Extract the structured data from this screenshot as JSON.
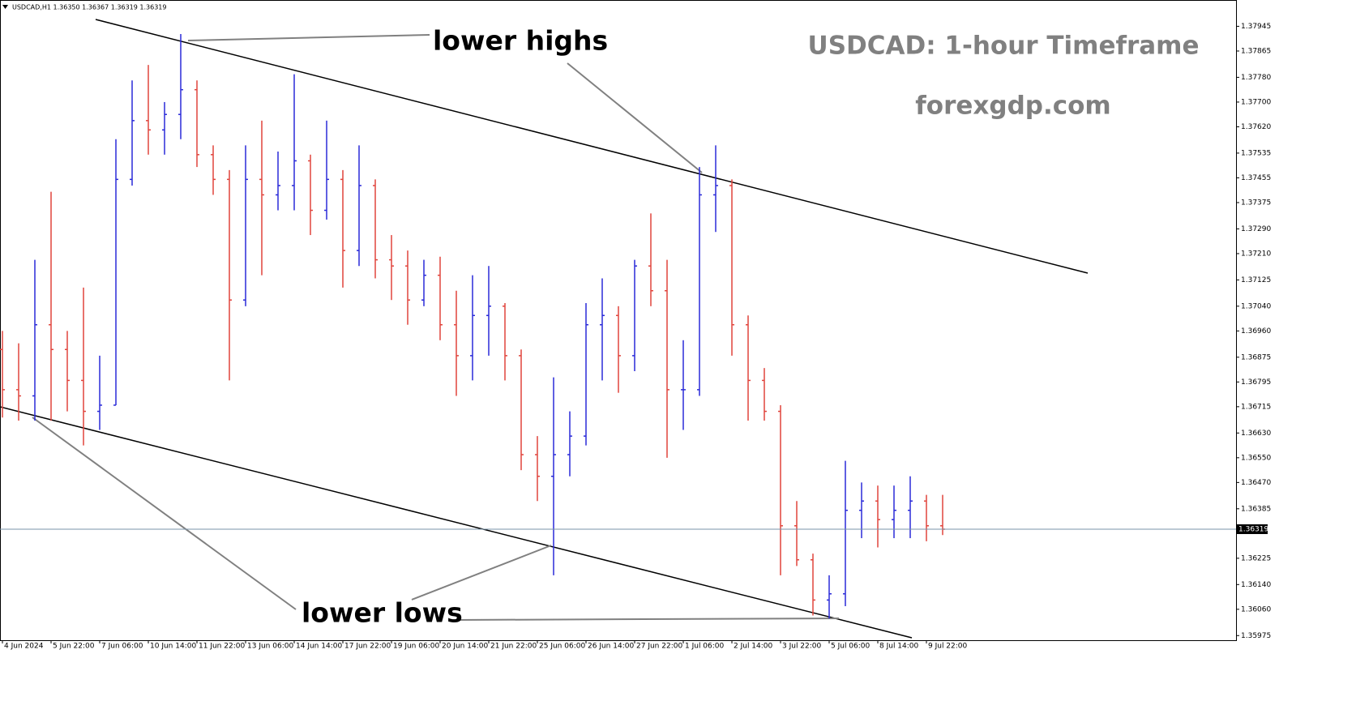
{
  "chart_data": {
    "type": "ohlc",
    "header": "USDCAD,H1  1.36350 1.36367 1.36319 1.36319",
    "title": "USDCAD: 1-hour Timeframe",
    "subtitle": "forexgdp.com",
    "annotations": [
      "lower highs",
      "lower lows"
    ],
    "up_color": "#2a2ad8",
    "down_color": "#e0443c",
    "grid": false,
    "last_price": 1.36319,
    "last_price_label": "1.36319",
    "xlim": [
      -0.15,
      76.1
    ],
    "ylim": [
      1.3596,
      1.3803
    ],
    "xticks": [
      {
        "value": 0,
        "label": "4 Jun 2024"
      },
      {
        "value": 3,
        "label": "5 Jun 22:00"
      },
      {
        "value": 6,
        "label": "7 Jun 06:00"
      },
      {
        "value": 9,
        "label": "10 Jun 14:00"
      },
      {
        "value": 12,
        "label": "11 Jun 22:00"
      },
      {
        "value": 15,
        "label": "13 Jun 06:00"
      },
      {
        "value": 18,
        "label": "14 Jun 14:00"
      },
      {
        "value": 21,
        "label": "17 Jun 22:00"
      },
      {
        "value": 24,
        "label": "19 Jun 06:00"
      },
      {
        "value": 27,
        "label": "20 Jun 14:00"
      },
      {
        "value": 30,
        "label": "21 Jun 22:00"
      },
      {
        "value": 33,
        "label": "25 Jun 06:00"
      },
      {
        "value": 36,
        "label": "26 Jun 14:00"
      },
      {
        "value": 39,
        "label": "27 Jun 22:00"
      },
      {
        "value": 42,
        "label": "1 Jul 06:00"
      },
      {
        "value": 45,
        "label": "2 Jul 14:00"
      },
      {
        "value": 48,
        "label": "3 Jul 22:00"
      },
      {
        "value": 51,
        "label": "5 Jul 06:00"
      },
      {
        "value": 54,
        "label": "8 Jul 14:00"
      },
      {
        "value": 57,
        "label": "9 Jul 22:00"
      }
    ],
    "yticks": [
      1.37945,
      1.37865,
      {
        "value": 1.3778,
        "label": "1.37780"
      },
      {
        "value": 1.377,
        "label": "1.37700"
      },
      {
        "value": 1.3762,
        "label": "1.37620"
      },
      1.37535,
      1.37455,
      1.37375,
      {
        "value": 1.3729,
        "label": "1.37290"
      },
      {
        "value": 1.3721,
        "label": "1.37210"
      },
      1.37125,
      {
        "value": 1.3704,
        "label": "1.37040"
      },
      {
        "value": 1.3696,
        "label": "1.36960"
      },
      1.36875,
      1.36795,
      1.36715,
      {
        "value": 1.3663,
        "label": "1.36630"
      },
      {
        "value": 1.3655,
        "label": "1.36550"
      },
      {
        "value": 1.3647,
        "label": "1.36470"
      },
      1.36385,
      1.36225,
      {
        "value": 1.3614,
        "label": "1.36140"
      },
      {
        "value": 1.3606,
        "label": "1.36060"
      },
      1.35975
    ],
    "open": [
      1.369,
      1.3677,
      1.3675,
      1.3698,
      1.369,
      1.368,
      1.367,
      1.3672,
      1.3745,
      1.3764,
      1.3761,
      1.3766,
      1.3774,
      1.3753,
      1.3745,
      1.3706,
      1.3745,
      1.374,
      1.3743,
      1.3751,
      1.3735,
      1.3745,
      1.3722,
      1.3743,
      1.3719,
      1.3717,
      1.3706,
      1.3714,
      1.3698,
      1.3688,
      1.3701,
      1.3704,
      1.3688,
      1.3656,
      1.3649,
      1.3656,
      1.3662,
      1.3698,
      1.3701,
      1.3688,
      1.3717,
      1.3709,
      1.3677,
      1.3677,
      1.374,
      1.3743,
      1.3698,
      1.368,
      1.367,
      1.3633,
      1.3622,
      1.3609,
      1.3611,
      1.3638,
      1.3641,
      1.3635,
      1.3638,
      1.3641,
      1.3633
    ],
    "high": [
      1.3696,
      1.3692,
      1.3719,
      1.3741,
      1.3696,
      1.371,
      1.3688,
      1.3758,
      1.3777,
      1.3782,
      1.377,
      1.3792,
      1.3777,
      1.3756,
      1.3748,
      1.3756,
      1.3764,
      1.3754,
      1.3779,
      1.3753,
      1.3764,
      1.3748,
      1.3756,
      1.3745,
      1.3727,
      1.3722,
      1.3719,
      1.372,
      1.3709,
      1.3714,
      1.3717,
      1.3705,
      1.369,
      1.3662,
      1.3681,
      1.367,
      1.3705,
      1.3713,
      1.3704,
      1.3719,
      1.3734,
      1.3719,
      1.3693,
      1.3749,
      1.3756,
      1.3745,
      1.3701,
      1.3684,
      1.3672,
      1.3641,
      1.3624,
      1.3617,
      1.3654,
      1.3647,
      1.3646,
      1.3646,
      1.3649,
      1.3643,
      1.3643
    ],
    "low": [
      1.3668,
      1.3667,
      1.3667,
      1.3667,
      1.367,
      1.3659,
      1.3664,
      1.3672,
      1.3743,
      1.3753,
      1.3753,
      1.3758,
      1.3749,
      1.374,
      1.368,
      1.3704,
      1.3714,
      1.3735,
      1.3735,
      1.3727,
      1.3732,
      1.371,
      1.3717,
      1.3713,
      1.3706,
      1.3698,
      1.3704,
      1.3693,
      1.3675,
      1.368,
      1.3688,
      1.368,
      1.3651,
      1.3641,
      1.3617,
      1.3649,
      1.3659,
      1.368,
      1.3676,
      1.3683,
      1.3704,
      1.3655,
      1.3664,
      1.3675,
      1.3728,
      1.3688,
      1.3667,
      1.3667,
      1.3617,
      1.362,
      1.3604,
      1.3603,
      1.3607,
      1.3629,
      1.3626,
      1.3629,
      1.3629,
      1.3628,
      1.363
    ],
    "close": [
      1.3677,
      1.3675,
      1.3698,
      1.369,
      1.368,
      1.367,
      1.3672,
      1.3745,
      1.3764,
      1.3761,
      1.3766,
      1.3774,
      1.3753,
      1.3745,
      1.3706,
      1.3745,
      1.374,
      1.3743,
      1.3751,
      1.3735,
      1.3745,
      1.3722,
      1.3743,
      1.3719,
      1.3717,
      1.3706,
      1.3714,
      1.3698,
      1.3688,
      1.3701,
      1.3704,
      1.3688,
      1.3656,
      1.3649,
      1.3656,
      1.3662,
      1.3698,
      1.3701,
      1.3688,
      1.3717,
      1.3709,
      1.3677,
      1.3677,
      1.374,
      1.3743,
      1.3698,
      1.368,
      1.367,
      1.3633,
      1.3622,
      1.3609,
      1.3611,
      1.3638,
      1.3641,
      1.3635,
      1.3638,
      1.3641,
      1.3633,
      1.36319
    ]
  }
}
